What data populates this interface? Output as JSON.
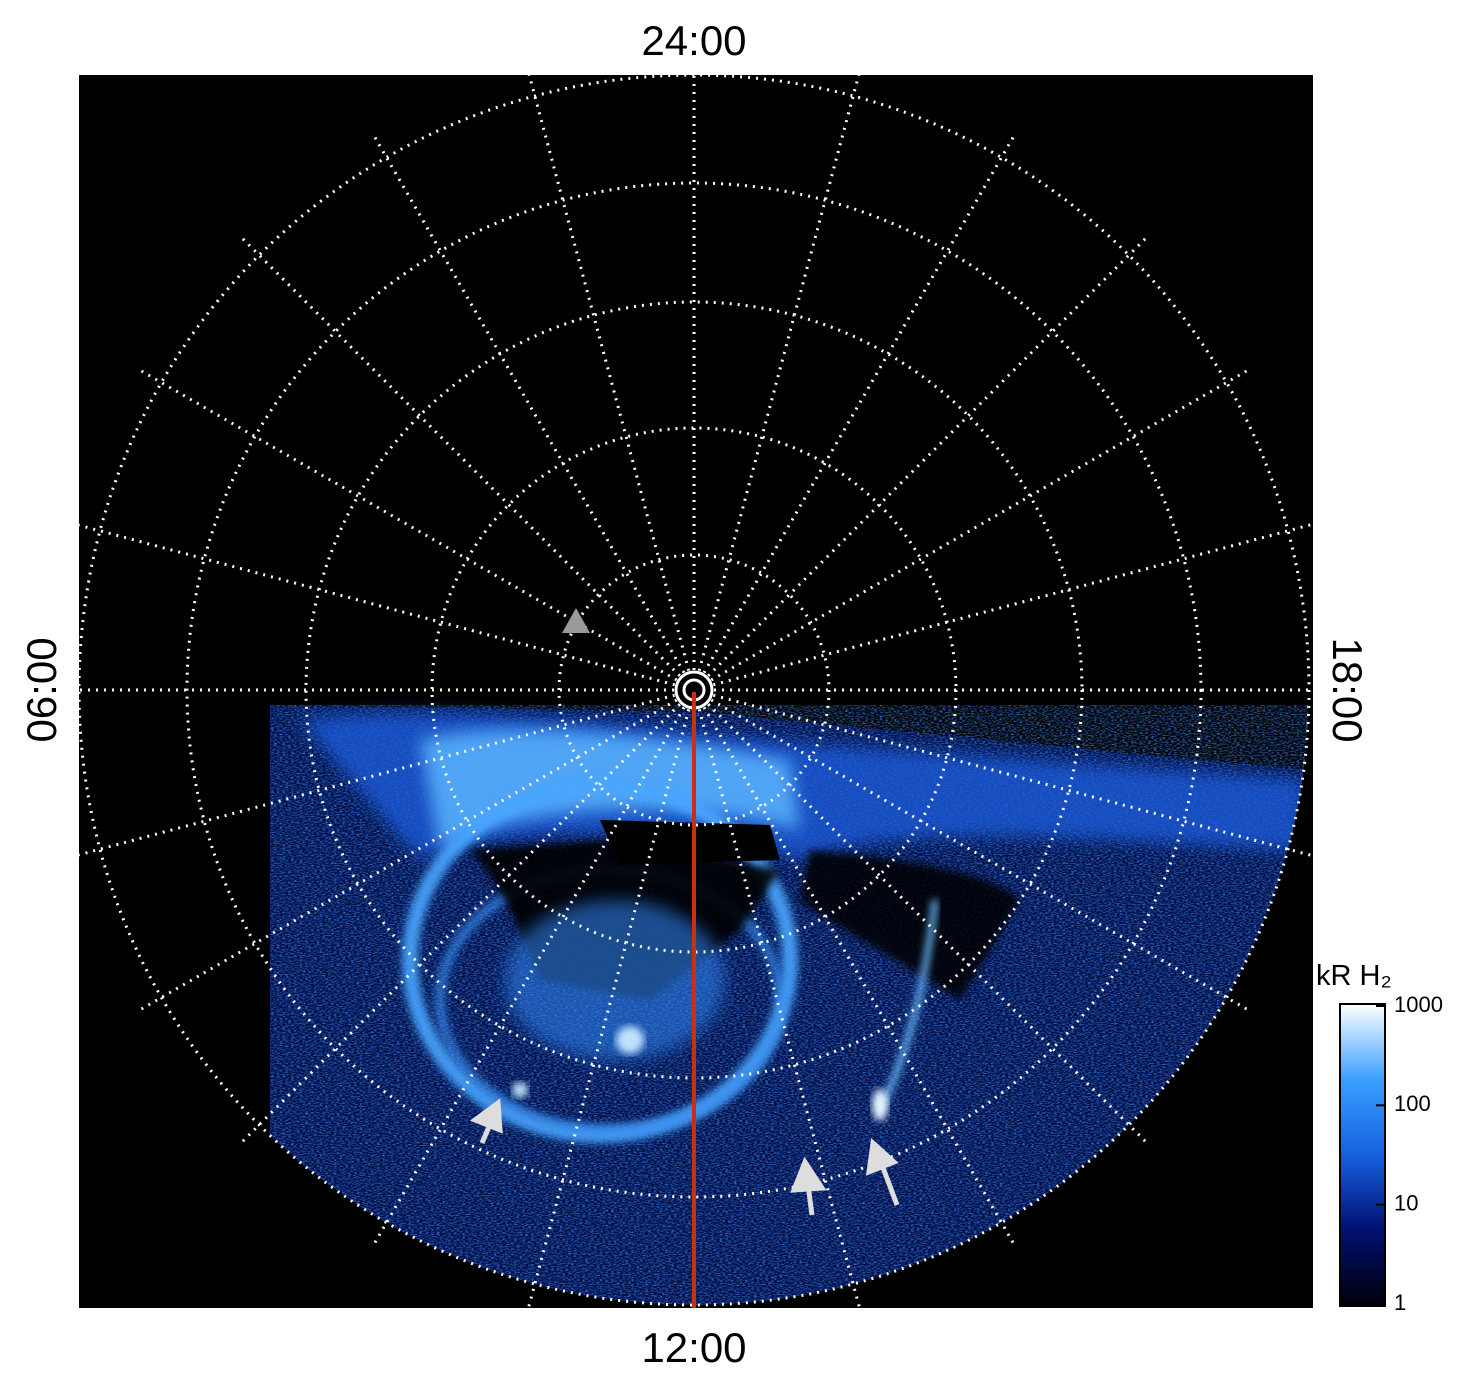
{
  "chart_data": {
    "type": "polar-image",
    "local_time_labels": {
      "top": "24:00",
      "bottom": "12:00",
      "left": "06:00",
      "right": "18:00"
    },
    "colorbar": {
      "label": "kR H₂",
      "scale": "log",
      "clim": [
        1,
        1000
      ],
      "ticks": [
        1,
        10,
        100,
        1000
      ],
      "colors": [
        "#000008",
        "#001070",
        "#1560e0",
        "#3aa0ff",
        "#ffffff"
      ]
    }
  }
}
